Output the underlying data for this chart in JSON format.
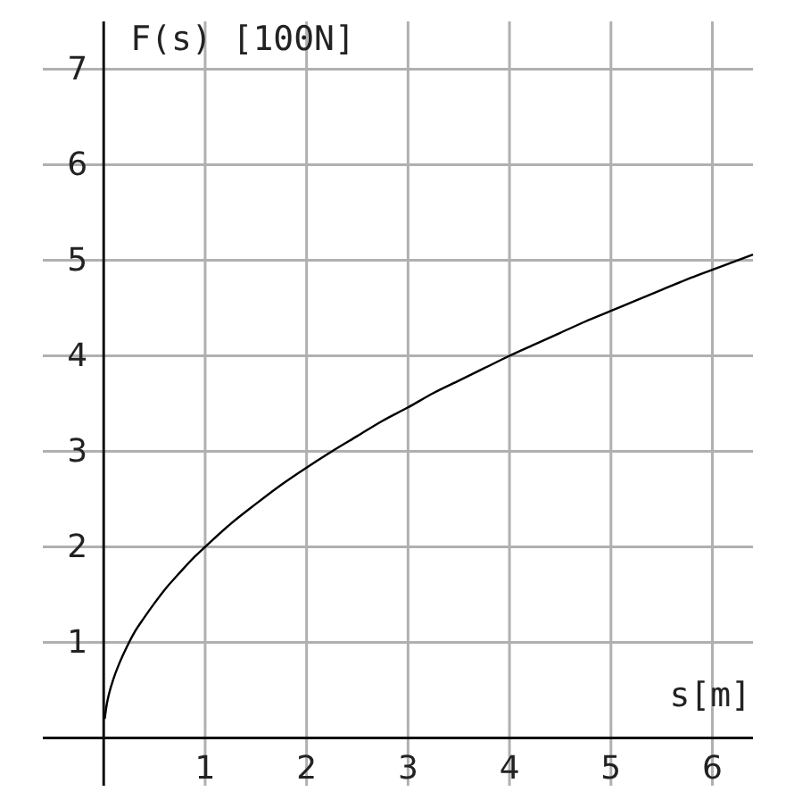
{
  "chart_data": {
    "type": "line",
    "xlabel": "s[m]",
    "ylabel": "F(s) [100N]",
    "x": [
      0.01,
      0.03,
      0.05,
      0.1,
      0.15,
      0.2,
      0.3,
      0.4,
      0.5,
      0.6,
      0.75,
      0.9,
      1,
      1.25,
      1.5,
      1.75,
      2,
      2.25,
      2.5,
      2.75,
      3,
      3.25,
      3.5,
      3.75,
      4,
      4.25,
      4.5,
      4.75,
      5,
      5.25,
      5.5,
      5.75,
      6,
      6.2,
      6.4
    ],
    "series": [
      {
        "color": "#000000",
        "values": [
          0.2,
          0.35,
          0.45,
          0.63,
          0.77,
          0.89,
          1.1,
          1.26,
          1.41,
          1.55,
          1.73,
          1.9,
          2,
          2.24,
          2.45,
          2.65,
          2.83,
          3,
          3.16,
          3.32,
          3.46,
          3.61,
          3.74,
          3.87,
          4,
          4.12,
          4.24,
          4.36,
          4.47,
          4.58,
          4.69,
          4.8,
          4.9,
          4.98,
          5.06
        ]
      }
    ],
    "xlim": [
      -0.6,
      6.4
    ],
    "ylim": [
      -0.5,
      7.5
    ],
    "xticks": [
      1,
      2,
      3,
      4,
      5,
      6
    ],
    "yticks": [
      1,
      2,
      3,
      4,
      5,
      6,
      7
    ],
    "grid": true
  }
}
